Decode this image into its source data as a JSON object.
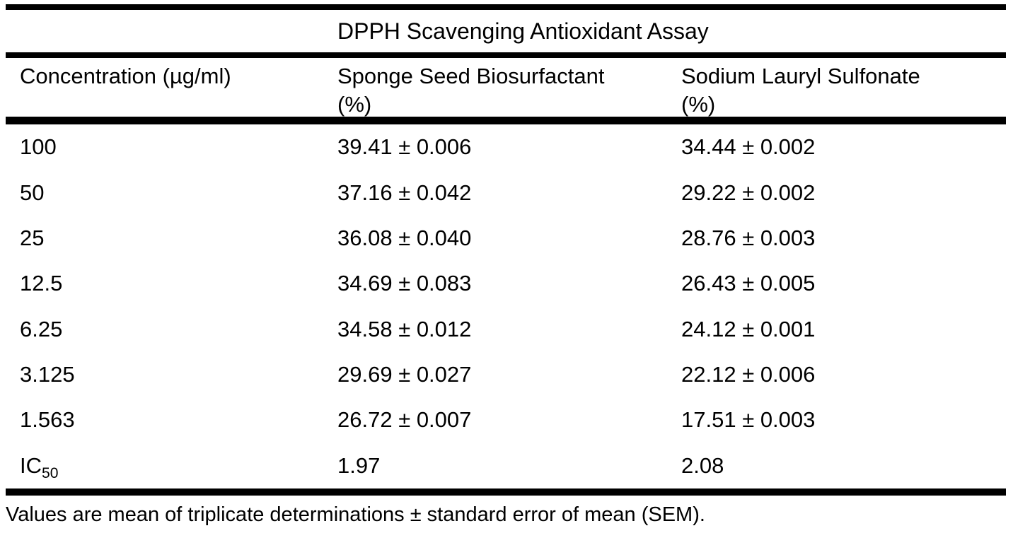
{
  "colors": {
    "text": "#000000",
    "background": "#ffffff",
    "rule": "#000000"
  },
  "table": {
    "title": "DPPH Scavenging Antioxidant Assay",
    "headers": [
      {
        "line1": "Concentration (µg/ml)",
        "line2": ""
      },
      {
        "line1": "Sponge Seed Biosurfactant",
        "line2": "(%)"
      },
      {
        "line1": "Sodium Lauryl Sulfonate",
        "line2": "(%)"
      }
    ],
    "rows": [
      {
        "concentration": "100",
        "sponge_seed_biosurfactant": "39.41 ± 0.006",
        "sodium_lauryl_sulfonate": "34.44 ± 0.002"
      },
      {
        "concentration": "50",
        "sponge_seed_biosurfactant": "37.16 ± 0.042",
        "sodium_lauryl_sulfonate": "29.22 ± 0.002"
      },
      {
        "concentration": "25",
        "sponge_seed_biosurfactant": "36.08 ± 0.040",
        "sodium_lauryl_sulfonate": "28.76 ± 0.003"
      },
      {
        "concentration": "12.5",
        "sponge_seed_biosurfactant": "34.69 ± 0.083",
        "sodium_lauryl_sulfonate": "26.43 ± 0.005"
      },
      {
        "concentration": "6.25",
        "sponge_seed_biosurfactant": "34.58 ± 0.012",
        "sodium_lauryl_sulfonate": "24.12 ± 0.001"
      },
      {
        "concentration": "3.125",
        "sponge_seed_biosurfactant": "29.69 ± 0.027",
        "sodium_lauryl_sulfonate": "22.12 ± 0.006"
      },
      {
        "concentration": "1.563",
        "sponge_seed_biosurfactant": "26.72 ± 0.007",
        "sodium_lauryl_sulfonate": "17.51 ± 0.003"
      },
      {
        "concentration": "IC",
        "concentration_sub": "50",
        "sponge_seed_biosurfactant": "1.97",
        "sodium_lauryl_sulfonate": "2.08"
      }
    ],
    "footnote": "Values are mean of triplicate determinations ± standard error of mean (SEM)."
  }
}
